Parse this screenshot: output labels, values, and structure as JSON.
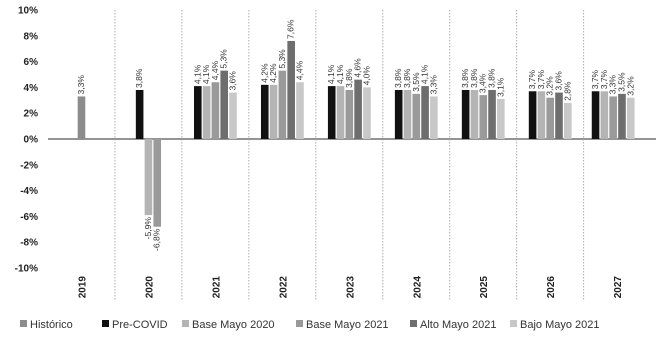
{
  "chart_data": {
    "type": "bar",
    "title": "",
    "xlabel": "",
    "ylabel": "",
    "ylim": [
      -10,
      10
    ],
    "y_ticks": [
      "10%",
      "8%",
      "6%",
      "4%",
      "2%",
      "0%",
      "-2%",
      "-4%",
      "-6%",
      "-8%",
      "-10%"
    ],
    "y_tick_values": [
      10,
      8,
      6,
      4,
      2,
      0,
      -2,
      -4,
      -6,
      -8,
      -10
    ],
    "categories": [
      "2019",
      "2020",
      "2021",
      "2022",
      "2023",
      "2024",
      "2025",
      "2026",
      "2027"
    ],
    "legend_position": "bottom",
    "grid": false,
    "series": [
      {
        "name": "Histórico",
        "color": "#8c8c8c",
        "values": [
          3.3,
          null,
          null,
          null,
          null,
          null,
          null,
          null,
          null
        ],
        "labels": [
          "3,3%",
          "",
          "",
          "",
          "",
          "",
          "",
          "",
          ""
        ]
      },
      {
        "name": "Pre-COVID",
        "color": "#111111",
        "values": [
          null,
          3.8,
          4.1,
          4.2,
          4.1,
          3.8,
          3.8,
          3.7,
          3.7
        ],
        "labels": [
          "",
          "3,8%",
          "4,1%",
          "4,2%",
          "4,1%",
          "3,8%",
          "3,8%",
          "3,7%",
          "3,7%"
        ]
      },
      {
        "name": "Base Mayo 2020",
        "color": "#b4b4b4",
        "values": [
          null,
          -5.9,
          4.1,
          4.2,
          4.1,
          3.8,
          3.8,
          3.7,
          3.7
        ],
        "labels": [
          "",
          "-5,9%",
          "4,1%",
          "4,2%",
          "4,1%",
          "3,8%",
          "3,8%",
          "3,7%",
          "3,7%"
        ]
      },
      {
        "name": "Base Mayo 2021",
        "color": "#9a9a9a",
        "values": [
          null,
          -6.8,
          4.4,
          5.3,
          3.8,
          3.5,
          3.4,
          3.2,
          3.3
        ],
        "labels": [
          "",
          "-6,8%",
          "4,4%",
          "5,3%",
          "3,8%",
          "3,5%",
          "3,4%",
          "3,2%",
          "3,3%"
        ]
      },
      {
        "name": "Alto Mayo 2021",
        "color": "#6e6e6e",
        "values": [
          null,
          null,
          5.3,
          7.6,
          4.6,
          4.1,
          3.8,
          3.6,
          3.5
        ],
        "labels": [
          "",
          "",
          "5,3%",
          "7,6%",
          "4,6%",
          "4,1%",
          "3,8%",
          "3,6%",
          "3,5%"
        ]
      },
      {
        "name": "Bajo Mayo 2021",
        "color": "#c8c8c8",
        "values": [
          null,
          null,
          3.6,
          4.4,
          4.0,
          3.3,
          3.1,
          2.8,
          3.2
        ],
        "labels": [
          "",
          "",
          "3,6%",
          "4,4%",
          "4,0%",
          "3,3%",
          "3,1%",
          "2,8%",
          "3,2%"
        ]
      }
    ]
  }
}
